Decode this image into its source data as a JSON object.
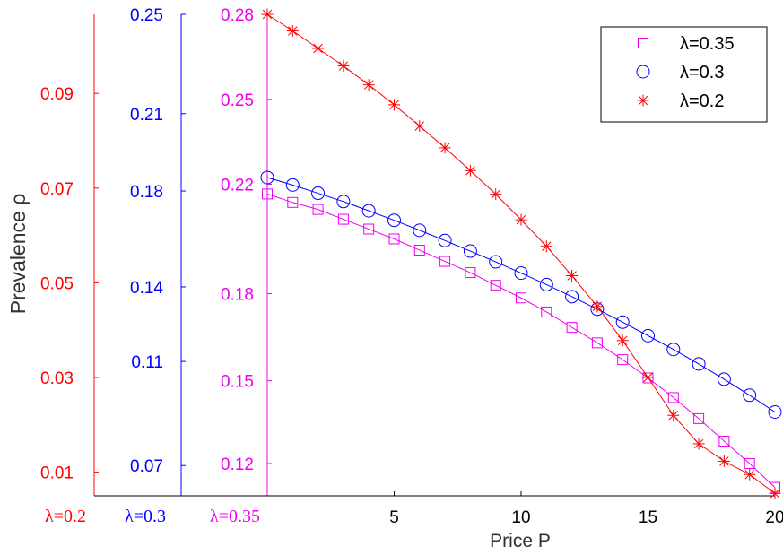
{
  "chart_data": {
    "type": "line",
    "xlabel": "Price P",
    "ylabel": "Prevalence  ρ",
    "xlim": [
      0,
      20
    ],
    "x_ticks": [
      "5",
      "10",
      "15",
      "20"
    ],
    "x_tick_values": [
      5,
      10,
      15,
      20
    ],
    "x": [
      0,
      1,
      2,
      3,
      4,
      5,
      6,
      7,
      8,
      9,
      10,
      11,
      12,
      13,
      14,
      15,
      16,
      17,
      18,
      19,
      20
    ],
    "axes": [
      {
        "id": "lam02",
        "label": "λ=0.2",
        "color": "#ff0000",
        "ylim": [
          0.005,
          0.1067
        ],
        "ticks": [
          "0.01",
          "0.03",
          "0.05",
          "0.07",
          "0.09"
        ],
        "tick_values": [
          0.01,
          0.03,
          0.05,
          0.07,
          0.09
        ]
      },
      {
        "id": "lam03",
        "label": "λ=0.3",
        "color": "#0000ff",
        "ylim": [
          0.0576,
          0.25
        ],
        "ticks": [
          "0.07",
          "0.11",
          "0.14",
          "0.18",
          "0.21",
          "0.25"
        ],
        "tick_values": [
          0.0697,
          0.1113,
          0.1411,
          0.1794,
          0.2103,
          0.25
        ]
      },
      {
        "id": "lam035",
        "label": "λ=0.35",
        "color": "#ee00ee",
        "ylim": [
          0.1085,
          0.28
        ],
        "ticks": [
          "0.12",
          "0.15",
          "0.18",
          "0.22",
          "0.25",
          "0.28"
        ],
        "tick_values": [
          0.12,
          0.1495,
          0.1805,
          0.2195,
          0.2497,
          0.28
        ]
      }
    ],
    "series": [
      {
        "name": "λ=0.35",
        "axis": "lam035",
        "marker": "square",
        "color": "#ee00ee",
        "values": [
          0.216,
          0.213,
          0.2105,
          0.207,
          0.2035,
          0.2,
          0.196,
          0.192,
          0.188,
          0.1835,
          0.179,
          0.174,
          0.1685,
          0.163,
          0.157,
          0.1505,
          0.1435,
          0.136,
          0.128,
          0.12,
          0.1115
        ]
      },
      {
        "name": "λ=0.3",
        "axis": "lam03",
        "marker": "circle",
        "color": "#0000ff",
        "values": [
          0.1848,
          0.1818,
          0.1785,
          0.1752,
          0.1715,
          0.1677,
          0.1637,
          0.1596,
          0.1554,
          0.1511,
          0.1466,
          0.142,
          0.1372,
          0.1322,
          0.127,
          0.1216,
          0.1161,
          0.1103,
          0.1042,
          0.0978,
          0.0911
        ]
      },
      {
        "name": "λ=0.2",
        "axis": "lam02",
        "marker": "star",
        "color": "#ff0000",
        "values": [
          0.1067,
          0.1032,
          0.0995,
          0.0958,
          0.0918,
          0.0876,
          0.0831,
          0.0785,
          0.0737,
          0.0687,
          0.0633,
          0.0577,
          0.0515,
          0.045,
          0.0378,
          0.03,
          0.022,
          0.016,
          0.0123,
          0.0095,
          0.0055
        ]
      }
    ],
    "legend": {
      "placement": "top-right",
      "entries": [
        {
          "label": "λ=0.35",
          "marker": "square",
          "color": "#ee00ee"
        },
        {
          "label": "λ=0.3",
          "marker": "circle",
          "color": "#0000ff"
        },
        {
          "label": "λ=0.2",
          "marker": "star",
          "color": "#ff0000"
        }
      ]
    },
    "grid": false
  }
}
